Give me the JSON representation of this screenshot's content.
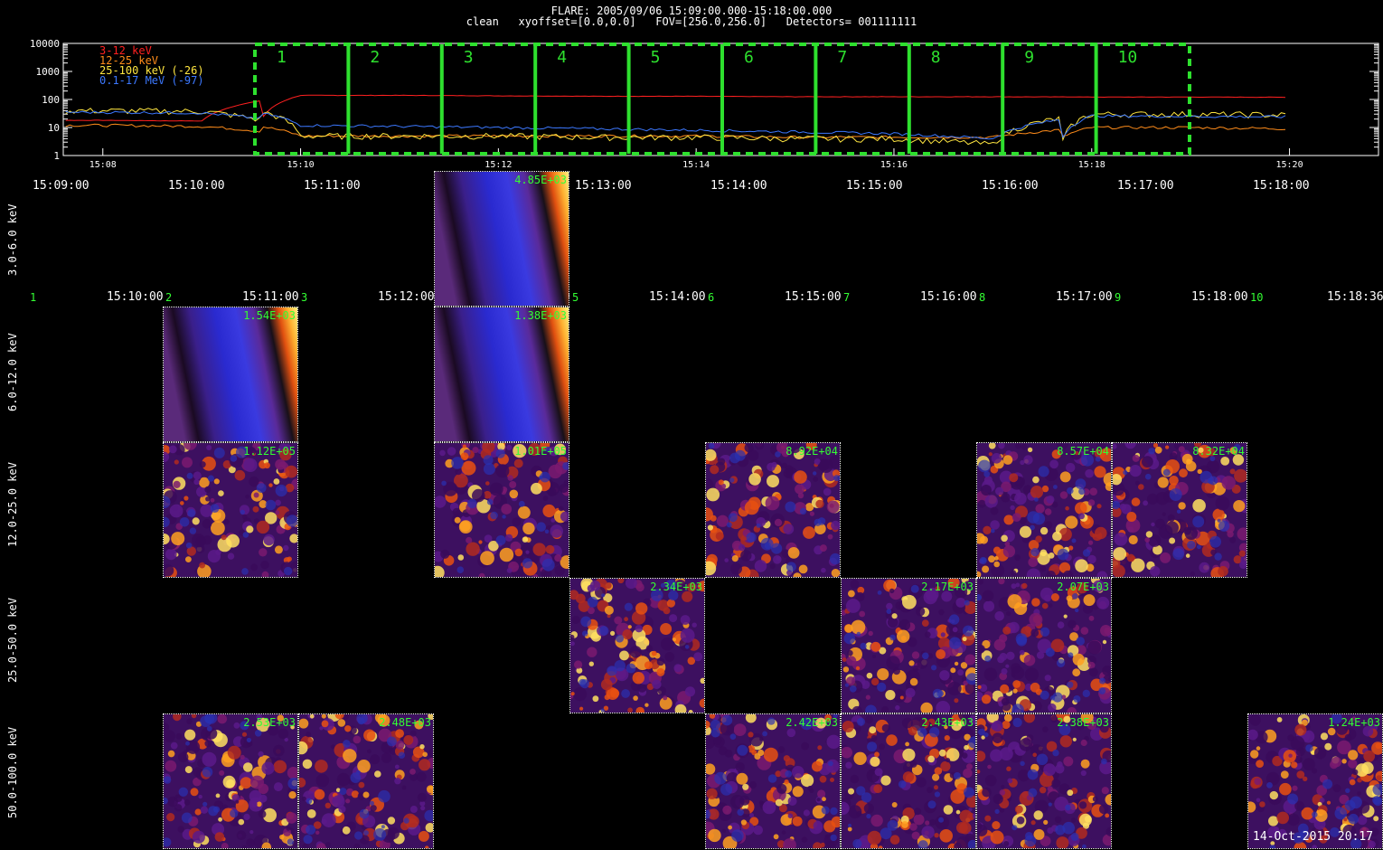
{
  "header": {
    "line1": "FLARE: 2005/09/06 15:09:00.000-15:18:00.000",
    "line2": "clean   xyoffset=[0.0,0.0]   FOV=[256.0,256.0]   Detectors= 001111111"
  },
  "chart_data": {
    "type": "line",
    "title": "FLARE: 2005/09/06 15:09:00.000-15:18:00.000",
    "y_scale": "log",
    "ylim": [
      1,
      10000
    ],
    "ytick_labels": [
      "1",
      "10",
      "100",
      "1000",
      "10000"
    ],
    "xtick_labels": [
      "15:08",
      "15:10",
      "15:12",
      "15:14",
      "15:16",
      "15:18",
      "15:20"
    ],
    "x_minutes_from_15_07": [
      0,
      1,
      2,
      3,
      4,
      5,
      6,
      7,
      8,
      9,
      10,
      11,
      12,
      13
    ],
    "legend_position": "top-left",
    "series": [
      {
        "name": "3-12 keV",
        "color": "#ff2020",
        "values": [
          18,
          18,
          17,
          140,
          140,
          135,
          130,
          130,
          125,
          125,
          125,
          122,
          122,
          120
        ]
      },
      {
        "name": "12-25 keV",
        "color": "#ff8c1a",
        "values": [
          12,
          12,
          11,
          5,
          5,
          5,
          5,
          5,
          4.5,
          4.5,
          4.5,
          10,
          10,
          9
        ]
      },
      {
        "name": "25-100 keV (-26)",
        "color": "#ffe640",
        "values": [
          40,
          40,
          38,
          5,
          5,
          5,
          4.5,
          4.5,
          4,
          4,
          2.5,
          30,
          30,
          28
        ]
      },
      {
        "name": "0.1-17 MeV (-97)",
        "color": "#3c78ff",
        "values": [
          35,
          35,
          33,
          12,
          11,
          10,
          9,
          8,
          7,
          6,
          4,
          26,
          25,
          24
        ]
      }
    ],
    "intervals": [
      "1",
      "2",
      "3",
      "4",
      "5",
      "6",
      "7",
      "8",
      "9",
      "10"
    ],
    "interval_color": "#2ee02e"
  },
  "column_times": [
    "15:09:00",
    "15:10:00",
    "15:11:00",
    "15:12:00",
    "15:13:00",
    "15:14:00",
    "15:15:00",
    "15:16:00",
    "15:17:00",
    "15:18:00"
  ],
  "row_header": {
    "numbers": [
      "1",
      "2",
      "3",
      "4",
      "5",
      "6",
      "7",
      "8",
      "9",
      "10"
    ],
    "times": [
      "15:10:00",
      "15:11:00",
      "15:12:00",
      "15:13:00",
      "15:14:00",
      "15:15:00",
      "15:16:00",
      "15:17:00",
      "15:18:00",
      "15:18:36"
    ]
  },
  "energy_bands": [
    "3.0-6.0 keV",
    "6.0-12.0 keV",
    "12.0-25.0 keV",
    "25.0-50.0 keV",
    "50.0-100.0 keV"
  ],
  "tiles": [
    {
      "band": 0,
      "col": 3,
      "max": "4.85E+03",
      "style": "smooth"
    },
    {
      "band": 1,
      "col": 1,
      "max": "1.54E+03",
      "style": "smooth"
    },
    {
      "band": 1,
      "col": 3,
      "max": "1.38E+03",
      "style": "smooth"
    },
    {
      "band": 2,
      "col": 1,
      "max": "1.12E+05",
      "style": "noise"
    },
    {
      "band": 2,
      "col": 3,
      "max": "1.01E+05",
      "style": "noise"
    },
    {
      "band": 2,
      "col": 5,
      "max": "8.92E+04",
      "style": "noise"
    },
    {
      "band": 2,
      "col": 7,
      "max": "8.57E+04",
      "style": "noise"
    },
    {
      "band": 2,
      "col": 8,
      "max": "8.32E+04",
      "style": "noise"
    },
    {
      "band": 3,
      "col": 4,
      "max": "2.34E+03",
      "style": "noise"
    },
    {
      "band": 3,
      "col": 6,
      "max": "2.17E+03",
      "style": "noise"
    },
    {
      "band": 3,
      "col": 7,
      "max": "2.07E+03",
      "style": "noise"
    },
    {
      "band": 4,
      "col": 1,
      "max": "2.53E+03",
      "style": "noise"
    },
    {
      "band": 4,
      "col": 2,
      "max": "2.48E+03",
      "style": "noise"
    },
    {
      "band": 4,
      "col": 5,
      "max": "2.42E+03",
      "style": "noise"
    },
    {
      "band": 4,
      "col": 6,
      "max": "2.43E+03",
      "style": "noise"
    },
    {
      "band": 4,
      "col": 7,
      "max": "2.38E+03",
      "style": "noise"
    },
    {
      "band": 4,
      "col": 9,
      "max": "1.24E+03",
      "style": "noise"
    }
  ],
  "footer": {
    "stamp": "14-Oct-2015 20:17"
  }
}
